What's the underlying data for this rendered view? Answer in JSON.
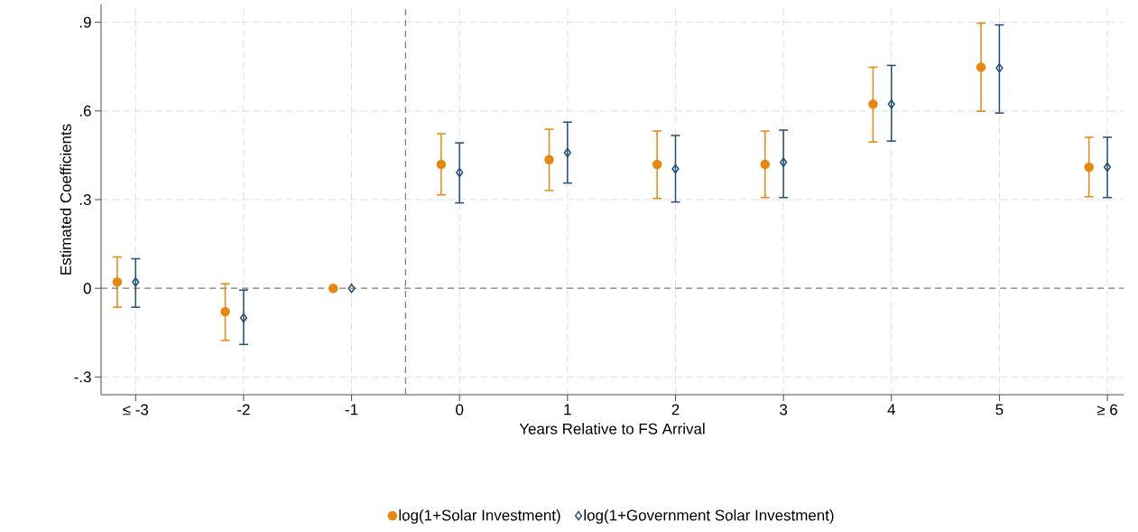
{
  "chart_data": {
    "type": "scatter",
    "xlabel": "Years Relative to FS Arrival",
    "ylabel": "Estimated Coefficients",
    "xlim": [
      -3.32,
      6.15
    ],
    "ylim": [
      -0.36,
      0.96
    ],
    "xticks": [
      {
        "value": -3,
        "label": "≤ -3"
      },
      -2,
      -1,
      0,
      1,
      2,
      3,
      4,
      5,
      {
        "value": 6,
        "label": "≥ 6"
      }
    ],
    "yticks": [
      {
        "value": -0.3,
        "label": "-.3"
      },
      0,
      {
        "value": 0.3,
        "label": ".3"
      },
      {
        "value": 0.6,
        "label": ".6"
      },
      {
        "value": 0.9,
        "label": ".9"
      }
    ],
    "grid": true,
    "legend": "bottom",
    "ref_lines": [
      {
        "axis": "y",
        "value": 0,
        "color": "#808080",
        "line_style": "dashed"
      },
      {
        "axis": "x",
        "value": -0.5,
        "color": "#808080",
        "line_style": "dashed"
      }
    ],
    "series": [
      {
        "name": "log(1+Solar Investment)",
        "color": "#e8870e",
        "marker": "circle",
        "x": [
          -3.17,
          -2.17,
          -1.17,
          -0.17,
          0.83,
          1.83,
          2.83,
          3.83,
          4.83,
          5.83
        ],
        "values": [
          0.021,
          -0.079,
          0,
          0.419,
          0.435,
          0.419,
          0.419,
          0.623,
          0.748,
          0.41
        ],
        "errors": [
          [
            -0.064,
            0.106
          ],
          [
            -0.176,
            0.015
          ],
          null,
          [
            0.316,
            0.523
          ],
          [
            0.331,
            0.538
          ],
          [
            0.304,
            0.532
          ],
          [
            0.307,
            0.532
          ],
          [
            0.495,
            0.748
          ],
          [
            0.599,
            0.897
          ],
          [
            0.31,
            0.511
          ]
        ]
      },
      {
        "name": "log(1+Government Solar Investment)",
        "color": "#1f4e79",
        "marker": "diamond",
        "x": [
          -3,
          -2,
          -1,
          0,
          1,
          2,
          3,
          4,
          5,
          6
        ],
        "values": [
          0.021,
          -0.1,
          0,
          0.392,
          0.459,
          0.404,
          0.426,
          0.623,
          0.745,
          0.41
        ],
        "errors": [
          [
            -0.064,
            0.1
          ],
          [
            -0.19,
            -0.006
          ],
          null,
          [
            0.289,
            0.492
          ],
          [
            0.356,
            0.562
          ],
          [
            0.292,
            0.517
          ],
          [
            0.307,
            0.535
          ],
          [
            0.498,
            0.754
          ],
          [
            0.593,
            0.891
          ],
          [
            0.307,
            0.511
          ]
        ]
      }
    ]
  }
}
